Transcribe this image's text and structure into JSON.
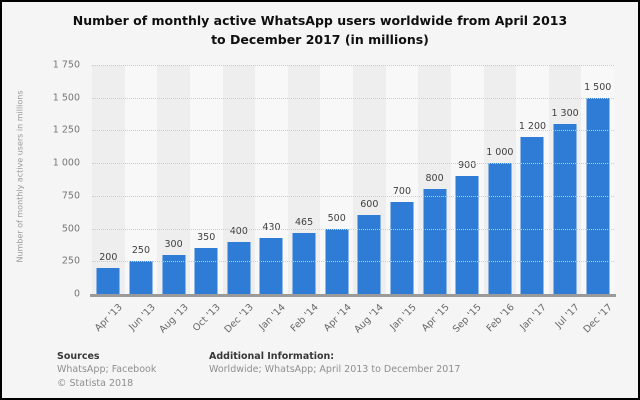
{
  "title_line1": "Number of monthly active WhatsApp users worldwide from April 2013",
  "title_line2": "to December 2017 (in millions)",
  "chart_data": {
    "type": "bar",
    "title": "Number of monthly active WhatsApp users worldwide from April 2013 to December 2017 (in millions)",
    "categories": [
      "Apr '13",
      "Jun '13",
      "Aug '13",
      "Oct '13",
      "Dec '13",
      "Jan '14",
      "Feb '14",
      "Apr '14",
      "Aug '14",
      "Jan '15",
      "Apr '15",
      "Sep '15",
      "Feb '16",
      "Jan '17",
      "Jul '17",
      "Dec '17"
    ],
    "values": [
      200,
      250,
      300,
      350,
      400,
      430,
      465,
      500,
      600,
      700,
      800,
      900,
      1000,
      1200,
      1300,
      1500
    ],
    "value_labels": [
      "200",
      "250",
      "300",
      "350",
      "400",
      "430",
      "465",
      "500",
      "600",
      "700",
      "800",
      "900",
      "1 000",
      "1 200",
      "1 300",
      "1 500"
    ],
    "xlabel": "",
    "ylabel": "Number of monthly active users in millions",
    "ylim": [
      0,
      1750
    ],
    "ytick_step": 250,
    "ytick_labels": [
      "0",
      "250",
      "500",
      "750",
      "1 000",
      "1 250",
      "1 500",
      "1 750"
    ],
    "grid": true,
    "legend": "none",
    "bar_color": "#2e7cd6"
  },
  "footer": {
    "sources_heading": "Sources",
    "sources_text": "WhatsApp; Facebook",
    "copyright_text": "© Statista 2018",
    "additional_heading": "Additional Information:",
    "additional_text": "Worldwide; WhatsApp; April 2013 to December 2017"
  }
}
